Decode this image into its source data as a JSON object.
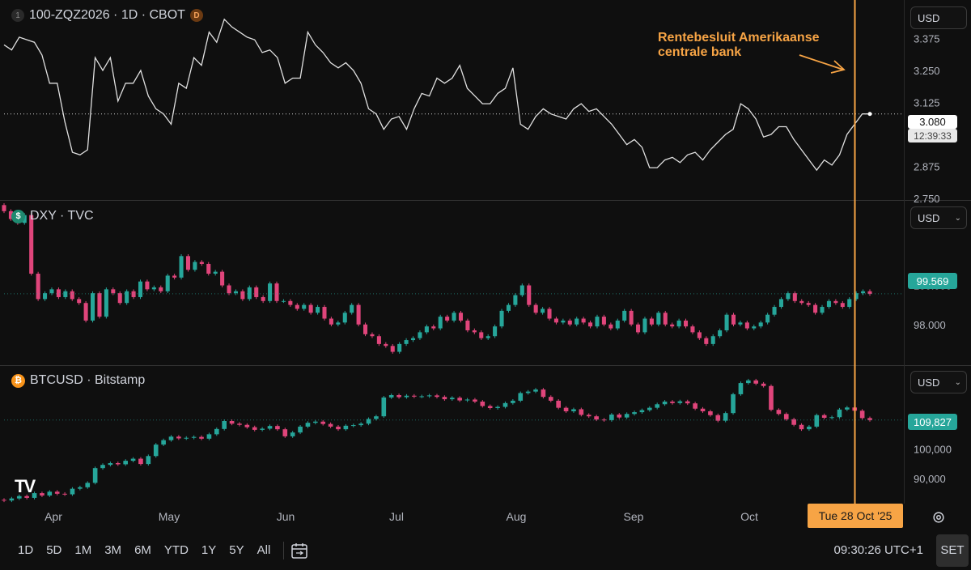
{
  "colors": {
    "background": "#0f0f0f",
    "up": "#26a69a",
    "down": "#e0457b",
    "line": "#e0e0e0",
    "accent": "#f7a445",
    "grid": "#2a2a2a"
  },
  "panes": {
    "futures": {
      "index_badge": "1",
      "title": "100-ZQZ2026 · 1D · CBOT",
      "interval_badge": "D",
      "currency": "USD",
      "last_price": "3.080",
      "countdown": "12:39:33"
    },
    "dxy": {
      "symbol_badge": "$",
      "title": "DXY · TVC",
      "currency": "USD",
      "last_price": "99.569"
    },
    "btc": {
      "symbol_badge": "₿",
      "title": "BTCUSD · Bitstamp",
      "currency": "USD",
      "last_price": "109,827"
    }
  },
  "annotation": {
    "line1": "Rentebesluit Amerikaanse",
    "line2": "centrale bank"
  },
  "crosshair_date": "Tue 28 Oct '25",
  "toolbar": {
    "ranges": [
      "1D",
      "5D",
      "1M",
      "3M",
      "6M",
      "YTD",
      "1Y",
      "5Y",
      "All"
    ],
    "time": "09:30:26 UTC+1",
    "set_label": "SET",
    "date_range_icon": "calendar-range-icon"
  },
  "logo_text": "TV",
  "chart_data": [
    {
      "type": "line",
      "series": [
        {
          "name": "100-ZQZ2026",
          "values": [
            3.35,
            3.33,
            3.38,
            3.37,
            3.36,
            3.31,
            3.2,
            3.2,
            3.05,
            2.93,
            2.92,
            2.94,
            3.3,
            3.25,
            3.3,
            3.13,
            3.2,
            3.2,
            3.25,
            3.15,
            3.1,
            3.08,
            3.04,
            3.2,
            3.18,
            3.3,
            3.27,
            3.4,
            3.36,
            3.45,
            3.42,
            3.4,
            3.38,
            3.37,
            3.32,
            3.33,
            3.3,
            3.2,
            3.22,
            3.22,
            3.4,
            3.35,
            3.32,
            3.28,
            3.26,
            3.28,
            3.25,
            3.2,
            3.1,
            3.08,
            3.02,
            3.06,
            3.07,
            3.02,
            3.1,
            3.16,
            3.15,
            3.22,
            3.2,
            3.22,
            3.27,
            3.18,
            3.15,
            3.12,
            3.12,
            3.16,
            3.18,
            3.26,
            3.04,
            3.02,
            3.07,
            3.1,
            3.08,
            3.07,
            3.06,
            3.1,
            3.12,
            3.09,
            3.1,
            3.07,
            3.04,
            3.0,
            2.96,
            2.98,
            2.95,
            2.87,
            2.87,
            2.9,
            2.91,
            2.89,
            2.92,
            2.93,
            2.9,
            2.94,
            2.97,
            3.0,
            3.02,
            3.12,
            3.1,
            3.06,
            2.99,
            3.0,
            3.03,
            3.03,
            2.98,
            2.94,
            2.9,
            2.86,
            2.9,
            2.88,
            2.92,
            3.0,
            3.04,
            3.08,
            3.08
          ]
        }
      ],
      "y_ticks": [
        3.375,
        3.25,
        3.125,
        3.0,
        2.875,
        2.75
      ],
      "ylim": [
        2.75,
        3.5
      ],
      "last_value": 3.08
    },
    {
      "type": "candlestick",
      "series": [
        {
          "name": "DXY",
          "closes": [
            103.8,
            103.4,
            103.2,
            103.6,
            100.6,
            99.3,
            99.6,
            99.8,
            99.4,
            99.7,
            99.3,
            99.1,
            98.2,
            99.6,
            98.4,
            99.8,
            99.6,
            99.1,
            99.7,
            99.4,
            100.2,
            99.8,
            99.9,
            99.7,
            100.5,
            100.4,
            101.5,
            100.8,
            101.2,
            101.1,
            100.6,
            100.7,
            100.0,
            99.6,
            99.7,
            99.3,
            99.9,
            99.4,
            99.2,
            100.1,
            99.2,
            99.2,
            99.0,
            98.8,
            99.0,
            98.6,
            98.9,
            98.3,
            98.0,
            98.1,
            98.6,
            99.0,
            98.0,
            97.5,
            97.4,
            97.0,
            96.9,
            96.6,
            97.0,
            97.2,
            97.3,
            97.6,
            97.9,
            97.8,
            98.4,
            98.2,
            98.6,
            98.2,
            97.7,
            97.6,
            97.3,
            97.4,
            97.9,
            98.7,
            99.0,
            99.5,
            100.0,
            99.0,
            98.6,
            98.8,
            98.3,
            98.1,
            98.2,
            98.0,
            98.3,
            98.1,
            97.9,
            98.4,
            98.0,
            97.8,
            98.2,
            98.7,
            98.0,
            97.6,
            98.3,
            98.0,
            98.6,
            98.0,
            97.9,
            98.2,
            97.9,
            97.6,
            97.3,
            97.0,
            97.4,
            97.7,
            98.5,
            98.0,
            98.1,
            97.8,
            97.9,
            98.1,
            98.5,
            98.9,
            99.3,
            99.6,
            99.2,
            99.1,
            99.0,
            98.6,
            98.9,
            99.2,
            99.1,
            98.9,
            99.3,
            99.6,
            99.7,
            99.57
          ]
        }
      ],
      "y_ticks": [
        100.0,
        98.0
      ],
      "ylim": [
        96,
        104
      ],
      "last_value": 99.569
    },
    {
      "type": "candlestick",
      "series": [
        {
          "name": "BTCUSD",
          "closes": [
            82500,
            83200,
            84000,
            83400,
            85000,
            84200,
            85500,
            84800,
            84600,
            86500,
            87000,
            88500,
            93500,
            94600,
            95200,
            94800,
            96000,
            96700,
            94900,
            97600,
            101500,
            103000,
            104200,
            103600,
            103800,
            104100,
            103500,
            105000,
            106800,
            109500,
            108600,
            108200,
            107400,
            106500,
            106900,
            107800,
            106700,
            104300,
            105600,
            107600,
            108900,
            109300,
            108500,
            107600,
            106700,
            107900,
            108100,
            108600,
            110200,
            111100,
            117500,
            118300,
            117600,
            118100,
            117800,
            117900,
            118200,
            117700,
            116900,
            117400,
            116500,
            116800,
            116100,
            114600,
            113900,
            114300,
            115600,
            116400,
            119000,
            119500,
            120200,
            117700,
            116400,
            114000,
            112800,
            113500,
            111600,
            111100,
            110000,
            109800,
            111700,
            110700,
            111900,
            112500,
            113200,
            114000,
            115200,
            116100,
            115600,
            116200,
            115500,
            113700,
            112800,
            111500,
            109600,
            112200,
            118600,
            122400,
            123300,
            122200,
            121400,
            113300,
            111900,
            110100,
            108200,
            106700,
            107600,
            111500,
            110600,
            110800,
            113400,
            114100,
            113000,
            110500,
            109827
          ]
        }
      ],
      "y_ticks": [
        100000,
        90000
      ],
      "ylim": [
        82000,
        126000
      ],
      "last_value": 109827
    }
  ],
  "x_axis_labels": [
    "Apr",
    "May",
    "Jun",
    "Jul",
    "Aug",
    "Sep",
    "Oct"
  ]
}
